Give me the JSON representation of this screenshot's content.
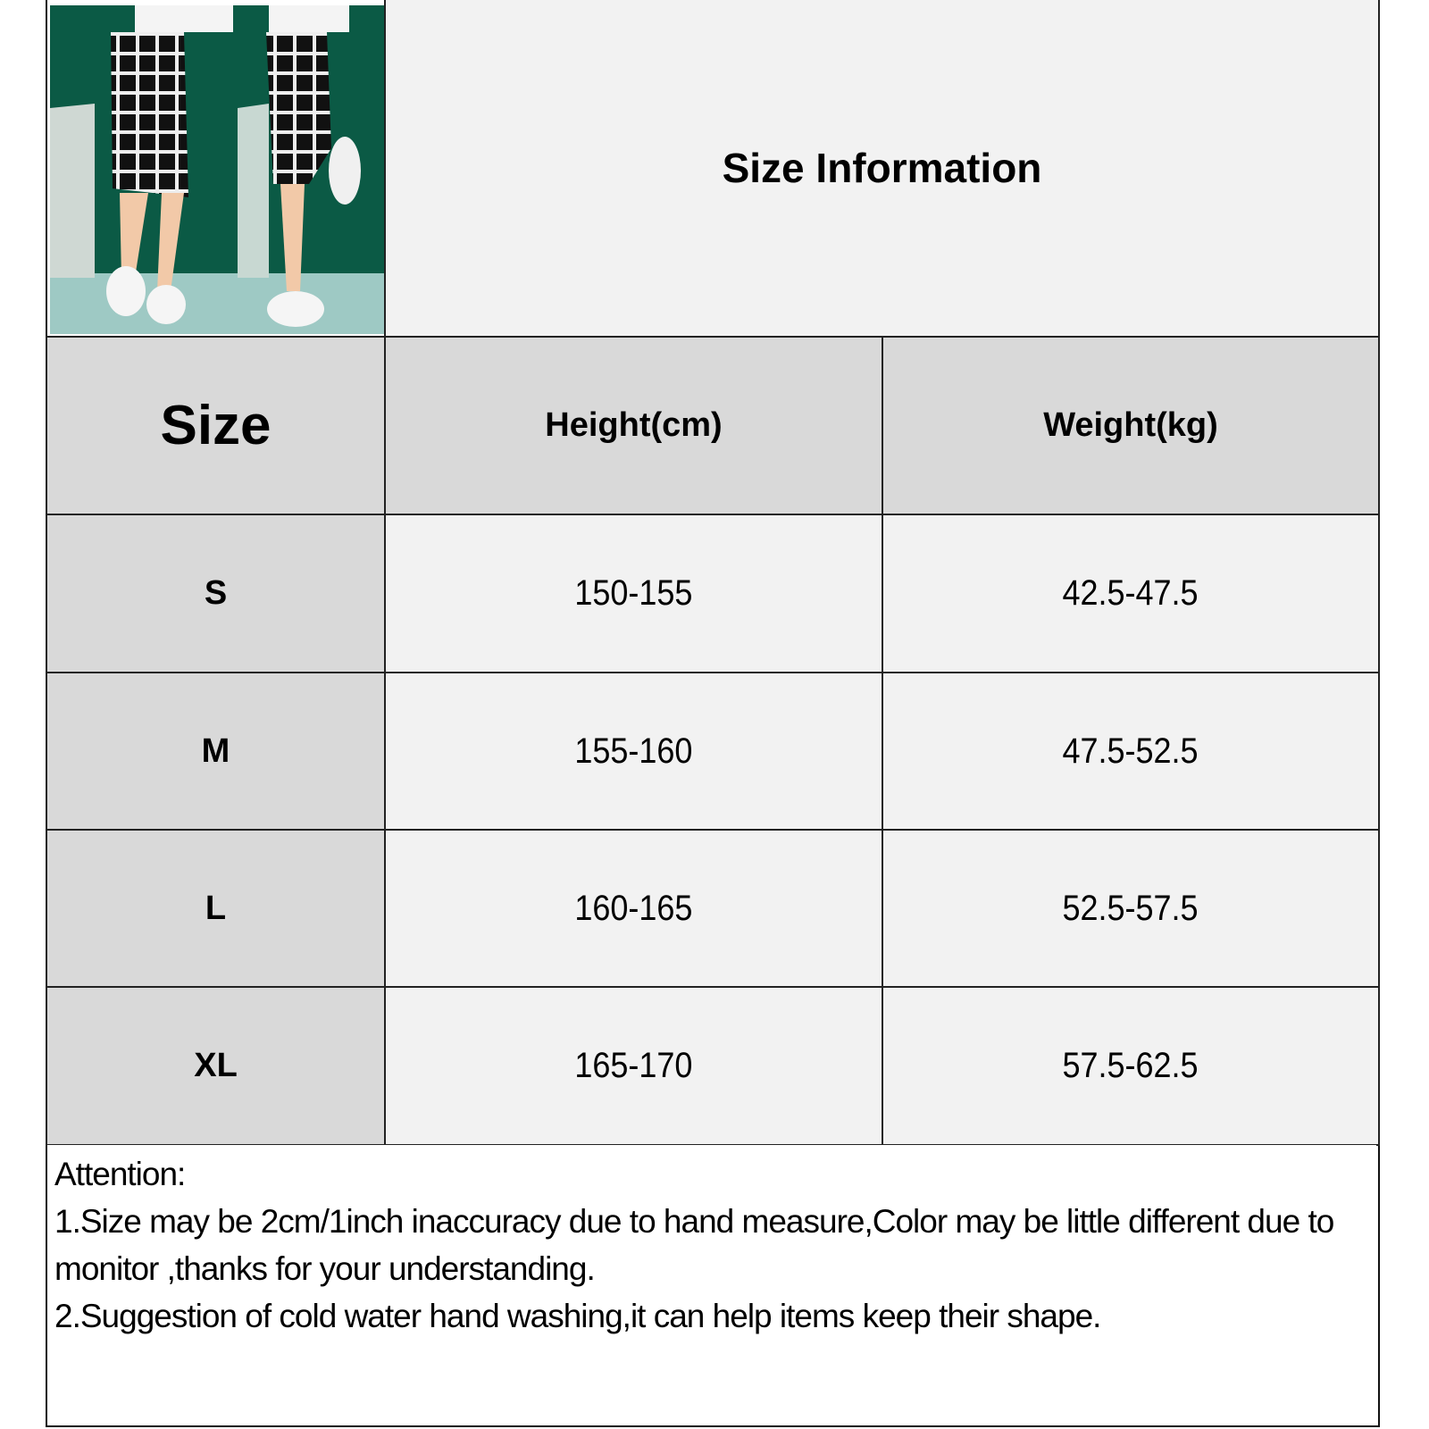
{
  "title": "Size Information",
  "product_image": {
    "description_icon": "plaid-capri-pants-photo"
  },
  "table": {
    "headers": [
      "Size",
      "Height(cm)",
      "Weight(kg)"
    ],
    "rows": [
      {
        "size": "S",
        "height": "150-155",
        "weight": "42.5-47.5"
      },
      {
        "size": "M",
        "height": "155-160",
        "weight": "47.5-52.5"
      },
      {
        "size": "L",
        "height": "160-165",
        "weight": "52.5-57.5"
      },
      {
        "size": "XL",
        "height": "165-170",
        "weight": "57.5-62.5"
      }
    ]
  },
  "attention": {
    "heading": "Attention:",
    "line1": "1.Size may be 2cm/1inch inaccuracy due to hand measure,Color may be little different due to monitor ,thanks for your understanding.",
    "line2": "2.Suggestion of cold water hand washing,it can help items keep their shape."
  }
}
